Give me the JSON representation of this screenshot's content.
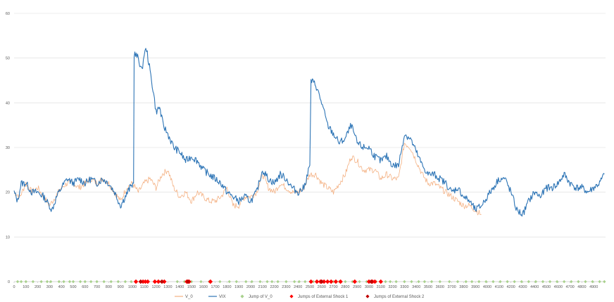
{
  "chart_data": {
    "type": "line",
    "title": "",
    "xlabel": "",
    "ylabel": "",
    "xlim": [
      0,
      5000
    ],
    "ylim": [
      0,
      60
    ],
    "x_ticks": [
      0,
      100,
      200,
      300,
      400,
      500,
      600,
      700,
      800,
      900,
      1000,
      1100,
      1200,
      1300,
      1400,
      1500,
      1600,
      1700,
      1800,
      1900,
      2000,
      2100,
      2200,
      2300,
      2400,
      2500,
      2600,
      2700,
      2800,
      2900,
      3000,
      3100,
      3200,
      3300,
      3400,
      3500,
      3600,
      3700,
      3800,
      3900,
      4000,
      4100,
      4200,
      4300,
      4400,
      4500,
      4600,
      4700,
      4800,
      4900
    ],
    "y_ticks": [
      0,
      10,
      20,
      30,
      40,
      50,
      60
    ],
    "grid": "horizontal",
    "legend_position": "bottom",
    "colors": {
      "v0": "#F4B183",
      "vix": "#2E75B6",
      "jump_v0": "#A9D18E",
      "jump_shock1": "#FF0000",
      "jump_shock2": "#C00000",
      "grid": "#D9D9D9"
    },
    "series": [
      {
        "name": "V_0",
        "type": "line",
        "points": [
          [
            0,
            20
          ],
          [
            50,
            19
          ],
          [
            100,
            22
          ],
          [
            150,
            20
          ],
          [
            200,
            21
          ],
          [
            250,
            19
          ],
          [
            300,
            17
          ],
          [
            350,
            19
          ],
          [
            400,
            21
          ],
          [
            450,
            22
          ],
          [
            500,
            22
          ],
          [
            550,
            21
          ],
          [
            600,
            22
          ],
          [
            650,
            23
          ],
          [
            700,
            22
          ],
          [
            750,
            23
          ],
          [
            800,
            22
          ],
          [
            850,
            20
          ],
          [
            900,
            18
          ],
          [
            950,
            21
          ],
          [
            1000,
            22
          ],
          [
            1050,
            20
          ],
          [
            1100,
            22
          ],
          [
            1150,
            23
          ],
          [
            1200,
            21
          ],
          [
            1250,
            24
          ],
          [
            1300,
            25
          ],
          [
            1350,
            21
          ],
          [
            1400,
            19
          ],
          [
            1450,
            20
          ],
          [
            1500,
            18
          ],
          [
            1550,
            20
          ],
          [
            1600,
            19
          ],
          [
            1650,
            18
          ],
          [
            1700,
            18
          ],
          [
            1750,
            19
          ],
          [
            1800,
            21
          ],
          [
            1850,
            17
          ],
          [
            1900,
            17
          ],
          [
            1950,
            19
          ],
          [
            2000,
            19
          ],
          [
            2050,
            20
          ],
          [
            2100,
            24
          ],
          [
            2150,
            21
          ],
          [
            2200,
            20
          ],
          [
            2250,
            22
          ],
          [
            2300,
            21
          ],
          [
            2350,
            20
          ],
          [
            2400,
            20
          ],
          [
            2450,
            21
          ],
          [
            2500,
            24
          ],
          [
            2550,
            24
          ],
          [
            2600,
            22
          ],
          [
            2650,
            21
          ],
          [
            2700,
            20
          ],
          [
            2750,
            22
          ],
          [
            2800,
            24
          ],
          [
            2850,
            28
          ],
          [
            2900,
            27
          ],
          [
            2950,
            25
          ],
          [
            3000,
            25
          ],
          [
            3050,
            25
          ],
          [
            3100,
            23
          ],
          [
            3150,
            24
          ],
          [
            3200,
            23
          ],
          [
            3250,
            23
          ],
          [
            3300,
            31
          ],
          [
            3350,
            30
          ],
          [
            3400,
            27
          ],
          [
            3450,
            24
          ],
          [
            3500,
            22
          ],
          [
            3550,
            22
          ],
          [
            3600,
            21
          ],
          [
            3650,
            20
          ],
          [
            3700,
            19
          ],
          [
            3750,
            18
          ],
          [
            3800,
            17
          ],
          [
            3850,
            17
          ],
          [
            3900,
            16
          ],
          [
            3950,
            15
          ]
        ]
      },
      {
        "name": "VIX",
        "type": "line",
        "points": [
          [
            0,
            20
          ],
          [
            30,
            18
          ],
          [
            60,
            22
          ],
          [
            100,
            22
          ],
          [
            150,
            20
          ],
          [
            200,
            20
          ],
          [
            250,
            19
          ],
          [
            300,
            17
          ],
          [
            320,
            16
          ],
          [
            360,
            19
          ],
          [
            400,
            21
          ],
          [
            450,
            23
          ],
          [
            500,
            22
          ],
          [
            550,
            23
          ],
          [
            600,
            22
          ],
          [
            650,
            23
          ],
          [
            700,
            22
          ],
          [
            750,
            23
          ],
          [
            800,
            22
          ],
          [
            850,
            20
          ],
          [
            900,
            17
          ],
          [
            940,
            19
          ],
          [
            980,
            21
          ],
          [
            1010,
            22
          ],
          [
            1015,
            51
          ],
          [
            1050,
            50
          ],
          [
            1080,
            47
          ],
          [
            1100,
            51
          ],
          [
            1120,
            52
          ],
          [
            1150,
            47
          ],
          [
            1180,
            42
          ],
          [
            1200,
            38
          ],
          [
            1230,
            39
          ],
          [
            1260,
            35
          ],
          [
            1280,
            34
          ],
          [
            1300,
            33
          ],
          [
            1350,
            30
          ],
          [
            1400,
            29
          ],
          [
            1450,
            27
          ],
          [
            1500,
            28
          ],
          [
            1550,
            27
          ],
          [
            1600,
            25
          ],
          [
            1650,
            24
          ],
          [
            1700,
            23
          ],
          [
            1750,
            22
          ],
          [
            1800,
            20
          ],
          [
            1850,
            19
          ],
          [
            1900,
            18
          ],
          [
            1950,
            19
          ],
          [
            2000,
            18
          ],
          [
            2050,
            20
          ],
          [
            2100,
            25
          ],
          [
            2150,
            23
          ],
          [
            2200,
            22
          ],
          [
            2250,
            24
          ],
          [
            2300,
            23
          ],
          [
            2350,
            21
          ],
          [
            2400,
            20
          ],
          [
            2450,
            21
          ],
          [
            2500,
            26
          ],
          [
            2510,
            45
          ],
          [
            2550,
            44
          ],
          [
            2600,
            40
          ],
          [
            2650,
            35
          ],
          [
            2700,
            33
          ],
          [
            2750,
            31
          ],
          [
            2800,
            32
          ],
          [
            2850,
            35
          ],
          [
            2900,
            31
          ],
          [
            2950,
            30
          ],
          [
            3000,
            30
          ],
          [
            3050,
            28
          ],
          [
            3100,
            27
          ],
          [
            3150,
            28
          ],
          [
            3200,
            26
          ],
          [
            3250,
            26
          ],
          [
            3300,
            33
          ],
          [
            3350,
            32
          ],
          [
            3400,
            29
          ],
          [
            3450,
            26
          ],
          [
            3500,
            24
          ],
          [
            3550,
            24
          ],
          [
            3600,
            23
          ],
          [
            3650,
            22
          ],
          [
            3700,
            20
          ],
          [
            3750,
            21
          ],
          [
            3800,
            19
          ],
          [
            3850,
            18
          ],
          [
            3900,
            16
          ],
          [
            3950,
            17
          ],
          [
            4000,
            19
          ],
          [
            4050,
            21
          ],
          [
            4100,
            23
          ],
          [
            4150,
            23
          ],
          [
            4200,
            20
          ],
          [
            4250,
            16
          ],
          [
            4300,
            15
          ],
          [
            4350,
            18
          ],
          [
            4400,
            20
          ],
          [
            4450,
            19
          ],
          [
            4500,
            21
          ],
          [
            4550,
            21
          ],
          [
            4600,
            22
          ],
          [
            4650,
            24
          ],
          [
            4700,
            22
          ],
          [
            4750,
            21
          ],
          [
            4800,
            21
          ],
          [
            4850,
            20
          ],
          [
            4900,
            21
          ],
          [
            4950,
            22
          ],
          [
            4990,
            24
          ]
        ]
      },
      {
        "name": "Jump of V_0",
        "type": "scatter",
        "x": [
          30,
          60,
          100,
          160,
          230,
          280,
          310,
          380,
          420,
          470,
          500,
          560,
          600,
          650,
          700,
          760,
          820,
          880,
          940,
          990,
          1100,
          1240,
          1380,
          1440,
          1500,
          1580,
          1650,
          1740,
          1820,
          1880,
          1960,
          2010,
          2080,
          2140,
          2180,
          2230,
          2300,
          2370,
          2410,
          2460,
          2530,
          2620,
          2700,
          2750,
          2800,
          2860,
          2920,
          2980,
          3060,
          3140,
          3180,
          3230,
          3300,
          3360,
          3420,
          3470,
          3530,
          3600,
          3680,
          3750,
          3820,
          3870,
          3930,
          3990,
          4050,
          4110,
          4170,
          4230,
          4290,
          4350,
          4410,
          4470,
          4530,
          4590,
          4650,
          4710,
          4770,
          4830,
          4890,
          4950,
          4990
        ],
        "y": [
          0,
          0,
          0,
          0,
          0,
          0,
          0,
          0,
          0,
          0,
          0,
          0,
          0,
          0,
          0,
          0,
          0,
          0,
          0,
          0,
          0,
          0,
          0,
          0,
          0,
          0,
          0,
          0,
          0,
          0,
          0,
          0,
          0,
          0,
          0,
          0,
          0,
          0,
          0,
          0,
          0,
          0,
          0,
          0,
          0,
          0,
          0,
          0,
          0,
          0,
          0,
          0,
          0,
          0,
          0,
          0,
          0,
          0,
          0,
          0,
          0,
          0,
          0,
          0,
          0,
          0,
          0,
          0,
          0,
          0,
          0,
          0,
          0,
          0,
          0,
          0,
          0,
          0,
          0,
          0,
          0
        ]
      },
      {
        "name": "Jumps of External Shock 1",
        "type": "scatter",
        "x": [
          1030,
          1090,
          1110,
          1130,
          1190,
          1220,
          1270,
          1460,
          1480,
          1660,
          2510,
          2560,
          2590,
          2620,
          2650,
          2680,
          2720,
          2760,
          2880,
          3000,
          3030,
          3050,
          3100
        ],
        "y": [
          0,
          0,
          0,
          0,
          0,
          0,
          0,
          0,
          0,
          0,
          0,
          0,
          0,
          0,
          0,
          0,
          0,
          0,
          0,
          0,
          0,
          0,
          0
        ]
      },
      {
        "name": "Jumps of External Shock 2",
        "type": "scatter",
        "x": [
          1070,
          1250,
          1470,
          2600,
          3020
        ],
        "y": [
          0,
          0,
          0,
          0,
          0
        ]
      }
    ]
  }
}
